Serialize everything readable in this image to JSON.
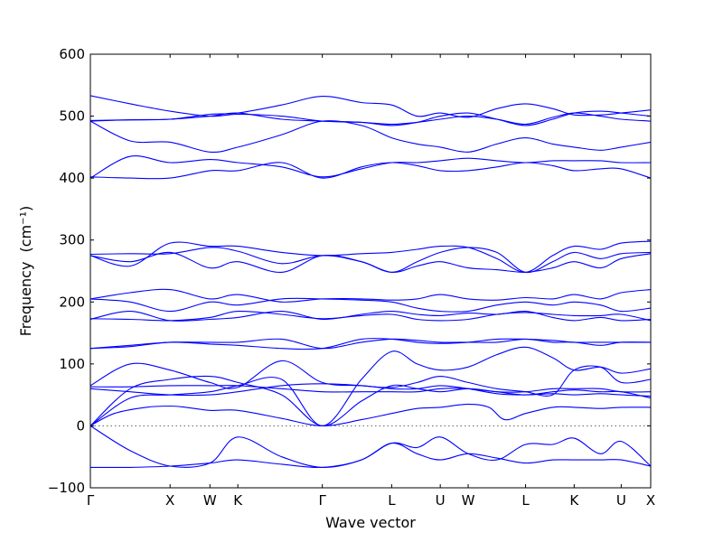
{
  "chart_data": {
    "type": "line",
    "title": "",
    "xlabel": "Wave vector",
    "ylabel": "Frequency",
    "ylabel_unit": "(cm⁻¹)",
    "ylim": [
      -100,
      600
    ],
    "yticks": [
      -100,
      0,
      100,
      200,
      300,
      400,
      500,
      600
    ],
    "grid": false,
    "legend": "none",
    "zero_line": "dotted",
    "x_points": [
      {
        "label": "Γ",
        "pos": 0.0
      },
      {
        "label": "X",
        "pos": 1.0
      },
      {
        "label": "W",
        "pos": 1.5
      },
      {
        "label": "K",
        "pos": 1.85
      },
      {
        "label": "Γ",
        "pos": 2.91
      },
      {
        "label": "L",
        "pos": 3.78
      },
      {
        "label": "U",
        "pos": 4.39
      },
      {
        "label": "W",
        "pos": 4.74
      },
      {
        "label": "L",
        "pos": 5.46
      },
      {
        "label": "K",
        "pos": 6.07
      },
      {
        "label": "U",
        "pos": 6.66
      },
      {
        "label": "X",
        "pos": 7.03
      }
    ],
    "series_color": "#0000ff",
    "series": [
      {
        "x": [
          0,
          0.5,
          1.0,
          1.5,
          1.85,
          2.4,
          2.91,
          3.4,
          3.78,
          4.1,
          4.39,
          4.74,
          5.1,
          5.46,
          5.8,
          6.07,
          6.4,
          6.66,
          7.03
        ],
        "values": [
          0,
          -40,
          -65,
          -60,
          -18,
          -50,
          -67,
          -55,
          -28,
          -35,
          -18,
          -45,
          -55,
          -30,
          -30,
          -20,
          -45,
          -25,
          -65
        ]
      },
      {
        "x": [
          0,
          0.5,
          1.0,
          1.5,
          1.85,
          2.4,
          2.91,
          3.4,
          3.78,
          4.1,
          4.39,
          4.74,
          5.1,
          5.46,
          5.8,
          6.07,
          6.4,
          6.66,
          7.03
        ],
        "values": [
          -67,
          -67,
          -65,
          -60,
          -55,
          -62,
          -67,
          -55,
          -28,
          -45,
          -55,
          -45,
          -52,
          -60,
          -55,
          -55,
          -55,
          -55,
          -65
        ]
      },
      {
        "x": [
          0,
          0.3,
          0.7,
          1.0,
          1.2,
          1.5,
          1.85,
          2.4,
          2.91,
          3.4,
          3.78,
          4.1,
          4.39,
          4.74,
          5.0,
          5.2,
          5.46,
          5.8,
          6.07,
          6.4,
          6.66,
          7.03
        ],
        "values": [
          0,
          20,
          30,
          32,
          30,
          25,
          25,
          12,
          0,
          10,
          20,
          28,
          30,
          35,
          30,
          10,
          20,
          30,
          30,
          28,
          30,
          30
        ]
      },
      {
        "x": [
          0,
          0.5,
          1.0,
          1.5,
          1.85,
          2.4,
          2.91,
          3.4,
          3.78,
          4.1,
          4.39,
          4.74,
          5.1,
          5.46,
          5.8,
          6.07,
          6.4,
          6.66,
          7.03
        ],
        "values": [
          0,
          60,
          75,
          80,
          70,
          50,
          0,
          40,
          65,
          60,
          55,
          60,
          55,
          50,
          55,
          58,
          55,
          55,
          45
        ]
      },
      {
        "x": [
          0,
          0.5,
          1.0,
          1.5,
          1.85,
          2.4,
          2.91,
          3.4,
          3.78,
          4.1,
          4.39,
          4.74,
          5.1,
          5.46,
          5.8,
          6.07,
          6.4,
          6.66,
          7.03
        ],
        "values": [
          0,
          45,
          50,
          55,
          65,
          75,
          0,
          75,
          120,
          100,
          90,
          95,
          115,
          127,
          110,
          90,
          95,
          85,
          92
        ]
      },
      {
        "x": [
          0,
          0.5,
          1.0,
          1.5,
          1.85,
          2.4,
          2.91,
          3.4,
          3.78,
          4.1,
          4.39,
          4.74,
          5.1,
          5.46,
          5.8,
          6.07,
          6.4,
          6.66,
          7.03
        ],
        "values": [
          63,
          63,
          65,
          65,
          65,
          60,
          55,
          55,
          55,
          55,
          60,
          60,
          55,
          55,
          60,
          60,
          60,
          55,
          55
        ]
      },
      {
        "x": [
          0,
          0.5,
          1.0,
          1.5,
          1.85,
          2.4,
          2.91,
          3.4,
          3.78,
          4.1,
          4.39,
          4.74,
          5.1,
          5.46,
          5.8,
          6.07,
          6.4,
          6.66,
          7.03
        ],
        "values": [
          60,
          55,
          50,
          50,
          55,
          65,
          68,
          65,
          60,
          60,
          65,
          60,
          52,
          50,
          52,
          50,
          52,
          50,
          48
        ]
      },
      {
        "x": [
          0,
          0.5,
          1.0,
          1.5,
          1.85,
          2.4,
          2.91,
          3.4,
          3.78,
          4.1,
          4.39,
          4.74,
          5.1,
          5.46,
          5.8,
          6.07,
          6.4,
          6.66,
          7.03
        ],
        "values": [
          65,
          100,
          90,
          70,
          62,
          105,
          70,
          65,
          62,
          70,
          80,
          70,
          60,
          55,
          50,
          90,
          95,
          70,
          75
        ]
      },
      {
        "x": [
          0,
          0.5,
          1.0,
          1.5,
          1.85,
          2.4,
          2.91,
          3.4,
          3.78,
          4.1,
          4.39,
          4.74,
          5.1,
          5.46,
          5.8,
          6.07,
          6.4,
          6.66,
          7.03
        ],
        "values": [
          125,
          130,
          135,
          135,
          135,
          140,
          125,
          135,
          140,
          138,
          135,
          135,
          135,
          140,
          135,
          135,
          130,
          135,
          135
        ]
      },
      {
        "x": [
          0,
          0.5,
          1.0,
          1.5,
          1.85,
          2.4,
          2.91,
          3.4,
          3.78,
          4.1,
          4.39,
          4.74,
          5.1,
          5.46,
          5.8,
          6.07,
          6.4,
          6.66,
          7.03
        ],
        "values": [
          125,
          128,
          135,
          132,
          130,
          125,
          125,
          140,
          140,
          135,
          133,
          135,
          140,
          140,
          138,
          135,
          135,
          135,
          135
        ]
      },
      {
        "x": [
          0,
          0.5,
          1.0,
          1.5,
          1.85,
          2.4,
          2.91,
          3.4,
          3.78,
          4.1,
          4.39,
          4.74,
          5.1,
          5.46,
          5.8,
          6.07,
          6.4,
          6.66,
          7.03
        ],
        "values": [
          172,
          185,
          170,
          172,
          175,
          185,
          172,
          180,
          185,
          180,
          178,
          182,
          180,
          185,
          175,
          170,
          175,
          170,
          172
        ]
      },
      {
        "x": [
          0,
          0.5,
          1.0,
          1.5,
          1.85,
          2.4,
          2.91,
          3.4,
          3.78,
          4.1,
          4.39,
          4.74,
          5.1,
          5.46,
          5.8,
          6.07,
          6.4,
          6.66,
          7.03
        ],
        "values": [
          173,
          172,
          170,
          175,
          185,
          180,
          173,
          178,
          180,
          172,
          170,
          172,
          180,
          183,
          180,
          178,
          178,
          180,
          170
        ]
      },
      {
        "x": [
          0,
          0.5,
          1.0,
          1.5,
          1.85,
          2.4,
          2.91,
          3.4,
          3.78,
          4.1,
          4.39,
          4.74,
          5.1,
          5.46,
          5.8,
          6.07,
          6.4,
          6.66,
          7.03
        ],
        "values": [
          205,
          215,
          220,
          205,
          212,
          200,
          205,
          205,
          203,
          205,
          212,
          205,
          203,
          207,
          205,
          212,
          205,
          215,
          220
        ]
      },
      {
        "x": [
          0,
          0.5,
          1.0,
          1.5,
          1.85,
          2.4,
          2.91,
          3.4,
          3.78,
          4.1,
          4.39,
          4.74,
          5.1,
          5.46,
          5.8,
          6.07,
          6.4,
          6.66,
          7.03
        ],
        "values": [
          205,
          200,
          185,
          200,
          195,
          205,
          205,
          203,
          200,
          190,
          185,
          185,
          195,
          200,
          195,
          200,
          195,
          185,
          190
        ]
      },
      {
        "x": [
          0,
          0.5,
          1.0,
          1.5,
          1.85,
          2.4,
          2.91,
          3.4,
          3.78,
          4.1,
          4.39,
          4.74,
          5.1,
          5.46,
          5.8,
          6.07,
          6.4,
          6.66,
          7.03
        ],
        "values": [
          275,
          258,
          295,
          290,
          290,
          280,
          275,
          278,
          280,
          285,
          290,
          288,
          270,
          248,
          275,
          290,
          285,
          295,
          298
        ]
      },
      {
        "x": [
          0,
          0.5,
          1.0,
          1.5,
          1.85,
          2.4,
          2.91,
          3.4,
          3.78,
          4.1,
          4.39,
          4.74,
          5.1,
          5.46,
          5.8,
          6.07,
          6.4,
          6.66,
          7.03
        ],
        "values": [
          277,
          278,
          278,
          288,
          282,
          262,
          275,
          265,
          248,
          265,
          280,
          288,
          280,
          248,
          265,
          280,
          270,
          278,
          280
        ]
      },
      {
        "x": [
          0,
          0.5,
          1.0,
          1.5,
          1.85,
          2.4,
          2.91,
          3.4,
          3.78,
          4.1,
          4.39,
          4.74,
          5.1,
          5.46,
          5.8,
          6.07,
          6.4,
          6.66,
          7.03
        ],
        "values": [
          275,
          265,
          280,
          255,
          265,
          248,
          275,
          265,
          248,
          258,
          265,
          255,
          252,
          248,
          255,
          265,
          255,
          270,
          278
        ]
      },
      {
        "x": [
          0,
          0.5,
          1.0,
          1.5,
          1.85,
          2.4,
          2.91,
          3.4,
          3.78,
          4.1,
          4.39,
          4.74,
          5.1,
          5.46,
          5.8,
          6.07,
          6.4,
          6.66,
          7.03
        ],
        "values": [
          400,
          435,
          425,
          430,
          425,
          418,
          402,
          415,
          425,
          425,
          428,
          432,
          428,
          425,
          428,
          428,
          428,
          425,
          425
        ]
      },
      {
        "x": [
          0,
          0.5,
          1.0,
          1.5,
          1.85,
          2.4,
          2.91,
          3.4,
          3.78,
          4.1,
          4.39,
          4.74,
          5.1,
          5.46,
          5.8,
          6.07,
          6.4,
          6.66,
          7.03
        ],
        "values": [
          402,
          400,
          400,
          412,
          412,
          425,
          400,
          418,
          425,
          420,
          412,
          412,
          418,
          425,
          420,
          412,
          415,
          415,
          400
        ]
      },
      {
        "x": [
          0,
          0.5,
          1.0,
          1.5,
          1.85,
          2.4,
          2.91,
          3.4,
          3.78,
          4.1,
          4.39,
          4.74,
          5.1,
          5.46,
          5.8,
          6.07,
          6.4,
          6.66,
          7.03
        ],
        "values": [
          492,
          460,
          458,
          442,
          450,
          470,
          492,
          485,
          465,
          455,
          450,
          442,
          455,
          465,
          455,
          450,
          445,
          450,
          458
        ]
      },
      {
        "x": [
          0,
          0.5,
          1.0,
          1.5,
          1.85,
          2.4,
          2.91,
          3.4,
          3.78,
          4.1,
          4.39,
          4.74,
          5.1,
          5.46,
          5.8,
          6.07,
          6.4,
          6.66,
          7.03
        ],
        "values": [
          492,
          494,
          495,
          500,
          505,
          495,
          492,
          490,
          485,
          490,
          500,
          505,
          495,
          485,
          495,
          505,
          508,
          505,
          500
        ]
      },
      {
        "x": [
          0,
          0.5,
          1.0,
          1.5,
          1.85,
          2.4,
          2.91,
          3.4,
          3.78,
          4.1,
          4.39,
          4.74,
          5.1,
          5.46,
          5.8,
          6.07,
          6.4,
          6.66,
          7.03
        ],
        "values": [
          493,
          494,
          495,
          503,
          505,
          518,
          532,
          522,
          518,
          500,
          505,
          498,
          512,
          520,
          512,
          502,
          502,
          505,
          510
        ]
      },
      {
        "x": [
          0,
          0.5,
          1.0,
          1.5,
          1.85,
          2.4,
          2.91,
          3.4,
          3.78,
          4.1,
          4.39,
          4.74,
          5.1,
          5.46,
          5.8,
          6.07,
          6.4,
          6.66,
          7.03
        ],
        "values": [
          533,
          520,
          508,
          500,
          503,
          500,
          492,
          490,
          487,
          490,
          495,
          500,
          495,
          487,
          498,
          505,
          500,
          495,
          492
        ]
      }
    ]
  }
}
